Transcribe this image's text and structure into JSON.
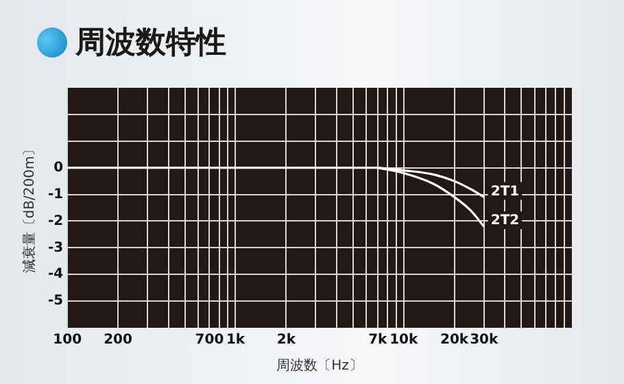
{
  "chart_data": {
    "type": "line",
    "title": "周波数特性",
    "xlabel": "周波数〔Hz〕",
    "ylabel": "減衰量〔dB/200m〕",
    "log": "x",
    "grid": true,
    "marker": "none",
    "xlim": [
      100,
      100000
    ],
    "ylim": [
      -6,
      3
    ],
    "xticks": [
      100,
      200,
      {
        "value": 300,
        "label": null
      },
      {
        "value": 400,
        "label": null
      },
      {
        "value": 500,
        "label": null
      },
      {
        "value": 600,
        "label": null
      },
      700,
      {
        "value": 800,
        "label": null
      },
      {
        "value": 900,
        "label": null
      },
      {
        "value": 1000,
        "label": "1k"
      },
      {
        "value": 2000,
        "label": "2k"
      },
      {
        "value": 3000,
        "label": null
      },
      {
        "value": 4000,
        "label": null
      },
      {
        "value": 5000,
        "label": null
      },
      {
        "value": 6000,
        "label": null
      },
      {
        "value": 7000,
        "label": "7k"
      },
      {
        "value": 8000,
        "label": null
      },
      {
        "value": 9000,
        "label": null
      },
      {
        "value": 10000,
        "label": "10k"
      },
      {
        "value": 20000,
        "label": "20k"
      },
      {
        "value": 30000,
        "label": "30k"
      },
      {
        "value": 40000,
        "label": null
      },
      {
        "value": 50000,
        "label": null
      },
      {
        "value": 60000,
        "label": null
      },
      {
        "value": 70000,
        "label": null
      },
      {
        "value": 80000,
        "label": null
      },
      {
        "value": 90000,
        "label": null
      }
    ],
    "yticks": [
      {
        "value": 2,
        "label": null
      },
      {
        "value": 1,
        "label": null
      },
      0,
      -1,
      -2,
      -3,
      -4,
      -5
    ],
    "series": [
      {
        "name": "2T1",
        "color": "#ffffff",
        "x": [
          7000,
          10000,
          15000,
          20000,
          25000,
          30000
        ],
        "values": [
          0,
          -0.1,
          -0.25,
          -0.5,
          -0.8,
          -1.1
        ]
      },
      {
        "name": "2T2",
        "color": "#ffffff",
        "x": [
          7000,
          10000,
          15000,
          20000,
          25000,
          30000
        ],
        "values": [
          0,
          -0.2,
          -0.6,
          -1.1,
          -1.6,
          -2.2
        ]
      },
      {
        "color": "#ffffff",
        "x": [
          100,
          7000
        ],
        "values": [
          0,
          0
        ]
      }
    ]
  }
}
